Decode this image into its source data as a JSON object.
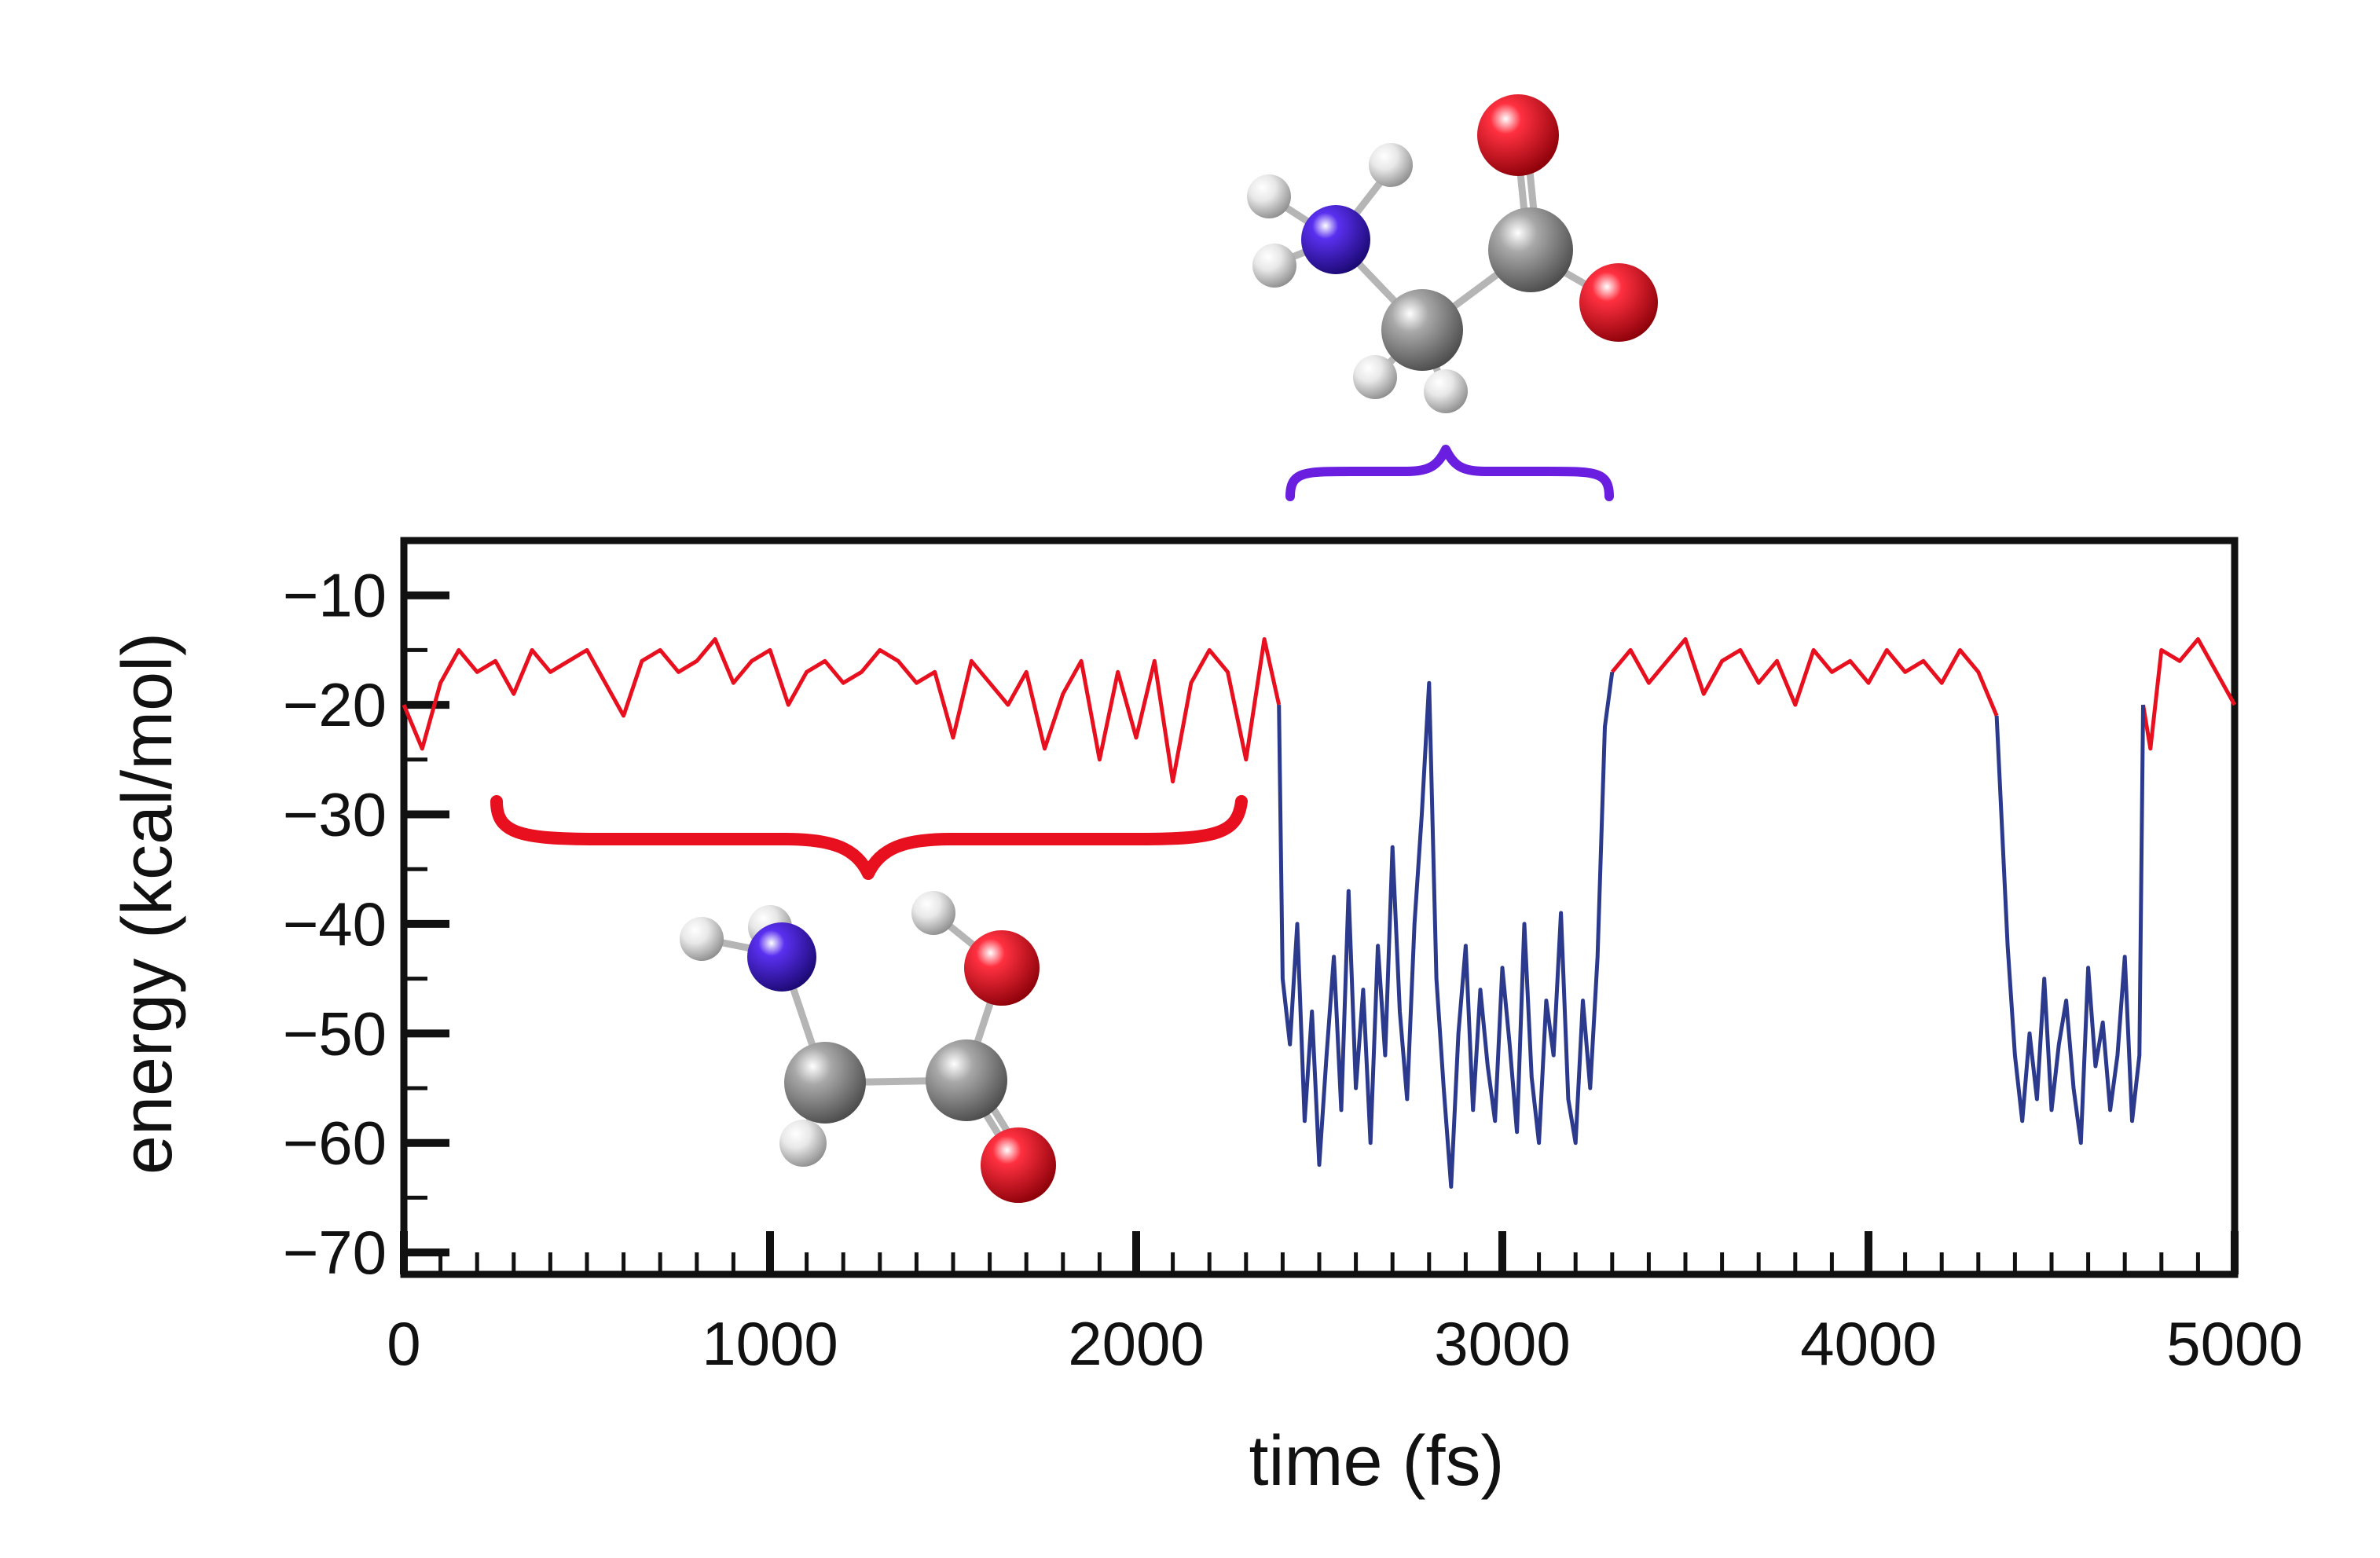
{
  "chart_data": {
    "type": "line",
    "xlabel": "time (fs)",
    "ylabel": "energy (kcal/mol)",
    "xlim": [
      0,
      5000
    ],
    "ylim": [
      -72,
      -5
    ],
    "x_ticks": [
      0,
      1000,
      2000,
      3000,
      4000,
      5000
    ],
    "x_tick_labels": [
      "0",
      "1000",
      "2000",
      "3000",
      "4000",
      "5000"
    ],
    "y_ticks": [
      -10,
      -20,
      -30,
      -40,
      -50,
      -60,
      -70
    ],
    "y_tick_labels": [
      "−10",
      "−20",
      "−30",
      "−40",
      "−50",
      "−60",
      "−70"
    ],
    "grid": false,
    "legend": "none",
    "colors": {
      "high_state": "#e8101e",
      "low_state": "#2b3a8c",
      "brace_high": "#e8101e",
      "brace_low": "#6a1ee0",
      "oxygen": "#e00010",
      "nitrogen": "#3a10c8",
      "carbon": "#8a8a8a",
      "hydrogen": "#dcdcdc"
    },
    "series": [
      {
        "state": "high",
        "color": "#e8101e",
        "segments": [
          {
            "x": [
              0,
              50,
              100,
              150,
              200,
              250,
              300,
              350,
              400,
              450,
              500,
              550,
              600,
              650,
              700,
              750,
              800,
              850,
              900,
              950,
              1000,
              1050,
              1100,
              1150,
              1200,
              1250,
              1300,
              1350,
              1400,
              1450,
              1500,
              1550,
              1600,
              1650,
              1700,
              1750,
              1800,
              1850,
              1900,
              1950,
              2000,
              2050,
              2100,
              2150,
              2200,
              2250,
              2300,
              2350,
              2390
            ],
            "y": [
              -20,
              -24,
              -18,
              -15,
              -17,
              -16,
              -19,
              -15,
              -17,
              -16,
              -15,
              -18,
              -21,
              -16,
              -15,
              -17,
              -16,
              -14,
              -18,
              -16,
              -15,
              -20,
              -17,
              -16,
              -18,
              -17,
              -15,
              -16,
              -18,
              -17,
              -23,
              -16,
              -18,
              -20,
              -17,
              -24,
              -19,
              -16,
              -25,
              -17,
              -23,
              -16,
              -27,
              -18,
              -15,
              -17,
              -25,
              -14,
              -20
            ]
          },
          {
            "x": [
              3300,
              3350,
              3400,
              3450,
              3500,
              3550,
              3600,
              3650,
              3700,
              3750,
              3800,
              3850,
              3900,
              3950,
              4000,
              4050,
              4100,
              4150,
              4200,
              4250,
              4300,
              4350
            ],
            "y": [
              -17,
              -15,
              -18,
              -16,
              -14,
              -19,
              -16,
              -15,
              -18,
              -16,
              -20,
              -15,
              -17,
              -16,
              -18,
              -15,
              -17,
              -16,
              -18,
              -15,
              -17,
              -21
            ]
          },
          {
            "x": [
              4750,
              4770,
              4800,
              4850,
              4900,
              4950,
              5000
            ],
            "y": [
              -20,
              -24,
              -15,
              -16,
              -14,
              -17,
              -20
            ]
          }
        ]
      },
      {
        "state": "low",
        "color": "#2b3a8c",
        "segments": [
          {
            "x": [
              2390,
              2400,
              2420,
              2440,
              2460,
              2480,
              2500,
              2520,
              2540,
              2560,
              2580,
              2600,
              2620,
              2640,
              2660,
              2680,
              2700,
              2720,
              2740,
              2760,
              2780,
              2800,
              2820,
              2840,
              2860,
              2880,
              2900,
              2920,
              2940,
              2960,
              2980,
              3000,
              3020,
              3040,
              3060,
              3080,
              3100,
              3120,
              3140,
              3160,
              3180,
              3200,
              3220,
              3240,
              3260,
              3280,
              3300
            ],
            "y": [
              -20,
              -45,
              -51,
              -40,
              -58,
              -48,
              -62,
              -52,
              -43,
              -57,
              -37,
              -55,
              -46,
              -60,
              -42,
              -52,
              -33,
              -48,
              -56,
              -40,
              -30,
              -18,
              -45,
              -55,
              -64,
              -50,
              -42,
              -57,
              -46,
              -53,
              -58,
              -44,
              -51,
              -59,
              -40,
              -54,
              -60,
              -47,
              -52,
              -39,
              -56,
              -60,
              -47,
              -55,
              -43,
              -22,
              -17
            ]
          },
          {
            "x": [
              4350,
              4380,
              4400,
              4420,
              4440,
              4460,
              4480,
              4500,
              4520,
              4540,
              4560,
              4580,
              4600,
              4620,
              4640,
              4660,
              4680,
              4700,
              4720,
              4740,
              4750
            ],
            "y": [
              -21,
              -42,
              -52,
              -58,
              -50,
              -56,
              -45,
              -57,
              -51,
              -47,
              -55,
              -60,
              -44,
              -53,
              -49,
              -57,
              -52,
              -43,
              -58,
              -52,
              -20
            ]
          }
        ]
      }
    ]
  }
}
